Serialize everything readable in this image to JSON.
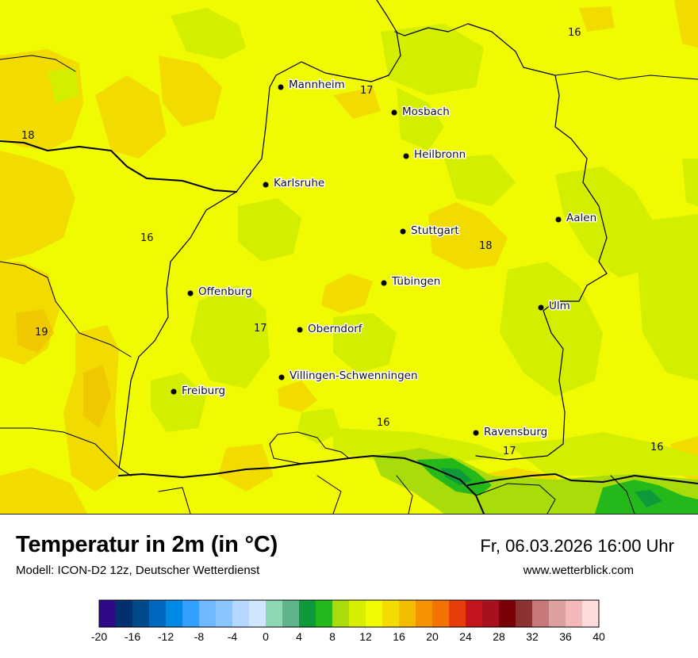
{
  "title": "Temperatur in 2m (in °C)",
  "model": "Modell: ICON-D2 12z, Deutscher Wetterdienst",
  "datetime": "Fr, 06.03.2026 16:00 Uhr",
  "website": "www.wetterblick.com",
  "cities": [
    {
      "name": "Mannheim"
    },
    {
      "name": "Mosbach"
    },
    {
      "name": "Heilbronn"
    },
    {
      "name": "Karlsruhe"
    },
    {
      "name": "Aalen"
    },
    {
      "name": "Stuttgart"
    },
    {
      "name": "Tübingen"
    },
    {
      "name": "Offenburg"
    },
    {
      "name": "Ulm"
    },
    {
      "name": "Oberndorf"
    },
    {
      "name": "Villingen-Schwenningen"
    },
    {
      "name": "Freiburg"
    },
    {
      "name": "Ravensburg"
    }
  ],
  "temperature_labels": [
    "16",
    "17",
    "18",
    "18",
    "16",
    "18",
    "19",
    "17",
    "16",
    "17",
    "16"
  ],
  "legend": {
    "colors": [
      "#2e0a8a",
      "#00306e",
      "#004a8c",
      "#0068be",
      "#0088e6",
      "#33a0ff",
      "#70b8ff",
      "#8cc4ff",
      "#b4d8ff",
      "#d0e6ff",
      "#8ed8b4",
      "#60b48c",
      "#0e9a3a",
      "#24b81a",
      "#a8dc0a",
      "#d6ee00",
      "#f0fa00",
      "#f4dc00",
      "#f4bc00",
      "#f49200",
      "#f47200",
      "#e83e0a",
      "#c4141e",
      "#a8101e",
      "#7a0008",
      "#8c3232",
      "#c87878",
      "#dca0a0",
      "#f4b8b8",
      "#ffdcdc"
    ],
    "ticks": [
      "-20",
      "-16",
      "-12",
      "-8",
      "-4",
      "0",
      "4",
      "8",
      "12",
      "16",
      "20",
      "24",
      "28",
      "32",
      "36",
      "40"
    ]
  },
  "map_colors": {
    "t16": "#d6ee00",
    "t17": "#f0fa00",
    "t18": "#f4dc00",
    "t19": "#f0c800",
    "t12": "#a8dc0a",
    "t10": "#24b81a",
    "t8": "#0e9a3a"
  }
}
